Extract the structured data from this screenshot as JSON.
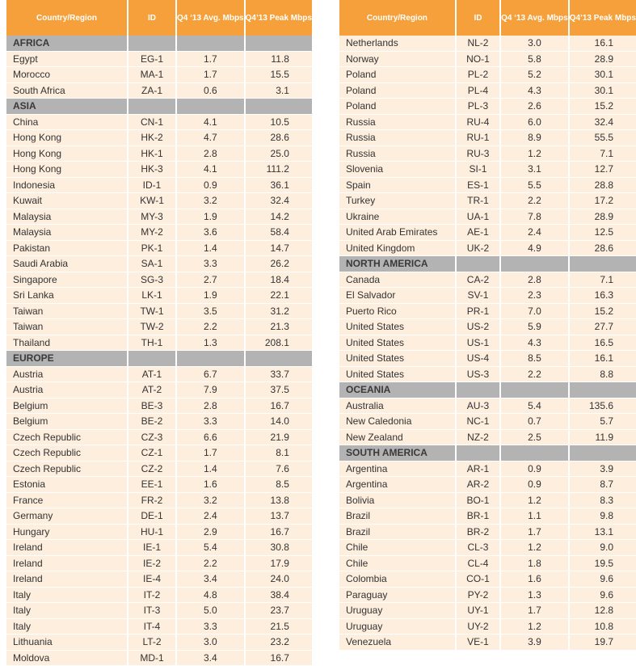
{
  "headers": {
    "country": "Country/Region",
    "id": "ID",
    "avg": "Q4 ‘13 Avg. Mbps",
    "peak": "Q4’13 Peak Mbps"
  },
  "left_table": [
    {
      "region": "AFRICA"
    },
    {
      "country": "Egypt",
      "id": "EG-1",
      "avg": "1.7",
      "peak": "11.8"
    },
    {
      "country": "Morocco",
      "id": "MA-1",
      "avg": "1.7",
      "peak": "15.5"
    },
    {
      "country": "South Africa",
      "id": "ZA-1",
      "avg": "0.6",
      "peak": "3.1"
    },
    {
      "region": "ASIA"
    },
    {
      "country": "China",
      "id": "CN-1",
      "avg": "4.1",
      "peak": "10.5"
    },
    {
      "country": "Hong Kong",
      "id": "HK-2",
      "avg": "4.7",
      "peak": "28.6"
    },
    {
      "country": "Hong Kong",
      "id": "HK-1",
      "avg": "2.8",
      "peak": "25.0"
    },
    {
      "country": "Hong Kong",
      "id": "HK-3",
      "avg": "4.1",
      "peak": "111.2"
    },
    {
      "country": "Indonesia",
      "id": "ID-1",
      "avg": "0.9",
      "peak": "36.1"
    },
    {
      "country": "Kuwait",
      "id": "KW-1",
      "avg": "3.2",
      "peak": "32.4"
    },
    {
      "country": "Malaysia",
      "id": "MY-3",
      "avg": "1.9",
      "peak": "14.2"
    },
    {
      "country": "Malaysia",
      "id": "MY-2",
      "avg": "3.6",
      "peak": "58.4"
    },
    {
      "country": "Pakistan",
      "id": "PK-1",
      "avg": "1.4",
      "peak": "14.7"
    },
    {
      "country": "Saudi Arabia",
      "id": "SA-1",
      "avg": "3.3",
      "peak": "26.2"
    },
    {
      "country": "Singapore",
      "id": "SG-3",
      "avg": "2.7",
      "peak": "18.4"
    },
    {
      "country": "Sri Lanka",
      "id": "LK-1",
      "avg": "1.9",
      "peak": "22.1"
    },
    {
      "country": "Taiwan",
      "id": "TW-1",
      "avg": "3.5",
      "peak": "31.2"
    },
    {
      "country": "Taiwan",
      "id": "TW-2",
      "avg": "2.2",
      "peak": "21.3"
    },
    {
      "country": "Thailand",
      "id": "TH-1",
      "avg": "1.3",
      "peak": "208.1"
    },
    {
      "region": "EUROPE"
    },
    {
      "country": "Austria",
      "id": "AT-1",
      "avg": "6.7",
      "peak": "33.7"
    },
    {
      "country": "Austria",
      "id": "AT-2",
      "avg": "7.9",
      "peak": "37.5"
    },
    {
      "country": "Belgium",
      "id": "BE-3",
      "avg": "2.8",
      "peak": "16.7"
    },
    {
      "country": "Belgium",
      "id": "BE-2",
      "avg": "3.3",
      "peak": "14.0"
    },
    {
      "country": "Czech Republic",
      "id": "CZ-3",
      "avg": "6.6",
      "peak": "21.9"
    },
    {
      "country": "Czech Republic",
      "id": "CZ-1",
      "avg": "1.7",
      "peak": "8.1"
    },
    {
      "country": "Czech Republic",
      "id": "CZ-2",
      "avg": "1.4",
      "peak": "7.6"
    },
    {
      "country": "Estonia",
      "id": "EE-1",
      "avg": "1.6",
      "peak": "8.5"
    },
    {
      "country": "France",
      "id": "FR-2",
      "avg": "3.2",
      "peak": "13.8"
    },
    {
      "country": "Germany",
      "id": "DE-1",
      "avg": "2.4",
      "peak": "13.7"
    },
    {
      "country": "Hungary",
      "id": "HU-1",
      "avg": "2.9",
      "peak": "16.7"
    },
    {
      "country": "Ireland",
      "id": "IE-1",
      "avg": "5.4",
      "peak": "30.8"
    },
    {
      "country": "Ireland",
      "id": "IE-2",
      "avg": "2.2",
      "peak": "17.9"
    },
    {
      "country": "Ireland",
      "id": "IE-4",
      "avg": "3.4",
      "peak": "24.0"
    },
    {
      "country": "Italy",
      "id": "IT-2",
      "avg": "4.8",
      "peak": "38.4"
    },
    {
      "country": "Italy",
      "id": "IT-3",
      "avg": "5.0",
      "peak": "23.7"
    },
    {
      "country": "Italy",
      "id": "IT-4",
      "avg": "3.3",
      "peak": "21.5"
    },
    {
      "country": "Lithuania",
      "id": "LT-2",
      "avg": "3.0",
      "peak": "23.2"
    },
    {
      "country": "Moldova",
      "id": "MD-1",
      "avg": "3.4",
      "peak": "16.7"
    }
  ],
  "right_table": [
    {
      "country": "Netherlands",
      "id": "NL-2",
      "avg": "3.0",
      "peak": "16.1"
    },
    {
      "country": "Norway",
      "id": "NO-1",
      "avg": "5.8",
      "peak": "28.9"
    },
    {
      "country": "Poland",
      "id": "PL-2",
      "avg": "5.2",
      "peak": "30.1"
    },
    {
      "country": "Poland",
      "id": "PL-4",
      "avg": "4.3",
      "peak": "30.1"
    },
    {
      "country": "Poland",
      "id": "PL-3",
      "avg": "2.6",
      "peak": "15.2"
    },
    {
      "country": "Russia",
      "id": "RU-4",
      "avg": "6.0",
      "peak": "32.4"
    },
    {
      "country": "Russia",
      "id": "RU-1",
      "avg": "8.9",
      "peak": "55.5"
    },
    {
      "country": "Russia",
      "id": "RU-3",
      "avg": "1.2",
      "peak": "7.1"
    },
    {
      "country": "Slovenia",
      "id": "SI-1",
      "avg": "3.1",
      "peak": "12.7"
    },
    {
      "country": "Spain",
      "id": "ES-1",
      "avg": "5.5",
      "peak": "28.8"
    },
    {
      "country": "Turkey",
      "id": "TR-1",
      "avg": "2.2",
      "peak": "17.2"
    },
    {
      "country": "Ukraine",
      "id": "UA-1",
      "avg": "7.8",
      "peak": "28.9"
    },
    {
      "country": "United Arab Emirates",
      "id": "AE-1",
      "avg": "2.4",
      "peak": "12.5"
    },
    {
      "country": "United Kingdom",
      "id": "UK-2",
      "avg": "4.9",
      "peak": "28.6"
    },
    {
      "region": "NORTH AMERICA"
    },
    {
      "country": "Canada",
      "id": "CA-2",
      "avg": "2.8",
      "peak": "7.1"
    },
    {
      "country": "El Salvador",
      "id": "SV-1",
      "avg": "2.3",
      "peak": "16.3"
    },
    {
      "country": "Puerto Rico",
      "id": "PR-1",
      "avg": "7.0",
      "peak": "15.2"
    },
    {
      "country": "United States",
      "id": "US-2",
      "avg": "5.9",
      "peak": "27.7"
    },
    {
      "country": "United States",
      "id": "US-1",
      "avg": "4.3",
      "peak": "16.5"
    },
    {
      "country": "United States",
      "id": "US-4",
      "avg": "8.5",
      "peak": "16.1"
    },
    {
      "country": "United States",
      "id": "US-3",
      "avg": "2.2",
      "peak": "8.8"
    },
    {
      "region": "OCEANIA"
    },
    {
      "country": "Australia",
      "id": "AU-3",
      "avg": "5.4",
      "peak": "135.6"
    },
    {
      "country": "New Caledonia",
      "id": "NC-1",
      "avg": "0.7",
      "peak": "5.7"
    },
    {
      "country": "New Zealand",
      "id": "NZ-2",
      "avg": "2.5",
      "peak": "11.9"
    },
    {
      "region": "SOUTH AMERICA"
    },
    {
      "country": "Argentina",
      "id": "AR-1",
      "avg": "0.9",
      "peak": "3.9"
    },
    {
      "country": "Argentina",
      "id": "AR-2",
      "avg": "0.9",
      "peak": "8.7"
    },
    {
      "country": "Bolivia",
      "id": "BO-1",
      "avg": "1.2",
      "peak": "8.3"
    },
    {
      "country": "Brazil",
      "id": "BR-1",
      "avg": "1.1",
      "peak": "9.8"
    },
    {
      "country": "Brazil",
      "id": "BR-2",
      "avg": "1.7",
      "peak": "13.1"
    },
    {
      "country": "Chile",
      "id": "CL-3",
      "avg": "1.2",
      "peak": "9.0"
    },
    {
      "country": "Chile",
      "id": "CL-4",
      "avg": "1.8",
      "peak": "19.5"
    },
    {
      "country": "Colombia",
      "id": "CO-1",
      "avg": "1.6",
      "peak": "9.6"
    },
    {
      "country": "Paraguay",
      "id": "PY-2",
      "avg": "1.3",
      "peak": "9.6"
    },
    {
      "country": "Uruguay",
      "id": "UY-1",
      "avg": "1.7",
      "peak": "12.8"
    },
    {
      "country": "Uruguay",
      "id": "UY-2",
      "avg": "1.2",
      "peak": "10.8"
    },
    {
      "country": "Venezuela",
      "id": "VE-1",
      "avg": "3.9",
      "peak": "19.7"
    }
  ]
}
